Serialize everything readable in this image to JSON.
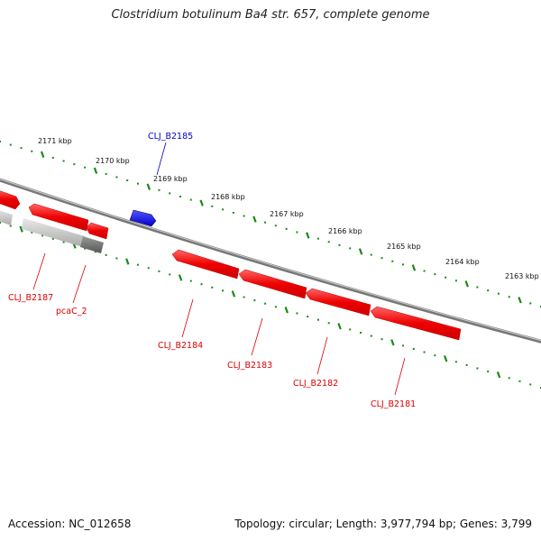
{
  "title": "Clostridium botulinum Ba4 str. 657, complete genome",
  "footer": {
    "accession": "Accession: NC_012658",
    "summary": "Topology: circular; Length: 3,977,794 bp; Genes: 3,799"
  },
  "colors": {
    "forward_gene": "#ff0000",
    "highlight_gene": "#0000ee",
    "ruler": "#1a8a1a",
    "backbone": "#888888",
    "pseudo_gene": "#bbbbbb"
  },
  "scale_ticks": [
    {
      "label": "2171 kbp"
    },
    {
      "label": "2170 kbp"
    },
    {
      "label": "2169 kbp"
    },
    {
      "label": "2168 kbp"
    },
    {
      "label": "2167 kbp"
    },
    {
      "label": "2166 kbp"
    },
    {
      "label": "2165 kbp"
    },
    {
      "label": "2164 kbp"
    },
    {
      "label": "2163 kbp"
    }
  ],
  "genes": [
    {
      "id": "CLJ_B2185",
      "strand": "forward",
      "color_key": "highlight_gene"
    },
    {
      "id": "CLJ_B2187",
      "strand": "reverse",
      "color_key": "forward_gene"
    },
    {
      "id": "pcaC_2",
      "strand": "reverse",
      "color_key": "forward_gene"
    },
    {
      "id": "CLJ_B2184",
      "strand": "reverse",
      "color_key": "forward_gene"
    },
    {
      "id": "CLJ_B2183",
      "strand": "reverse",
      "color_key": "forward_gene"
    },
    {
      "id": "CLJ_B2182",
      "strand": "reverse",
      "color_key": "forward_gene"
    },
    {
      "id": "CLJ_B2181",
      "strand": "reverse",
      "color_key": "forward_gene"
    }
  ]
}
